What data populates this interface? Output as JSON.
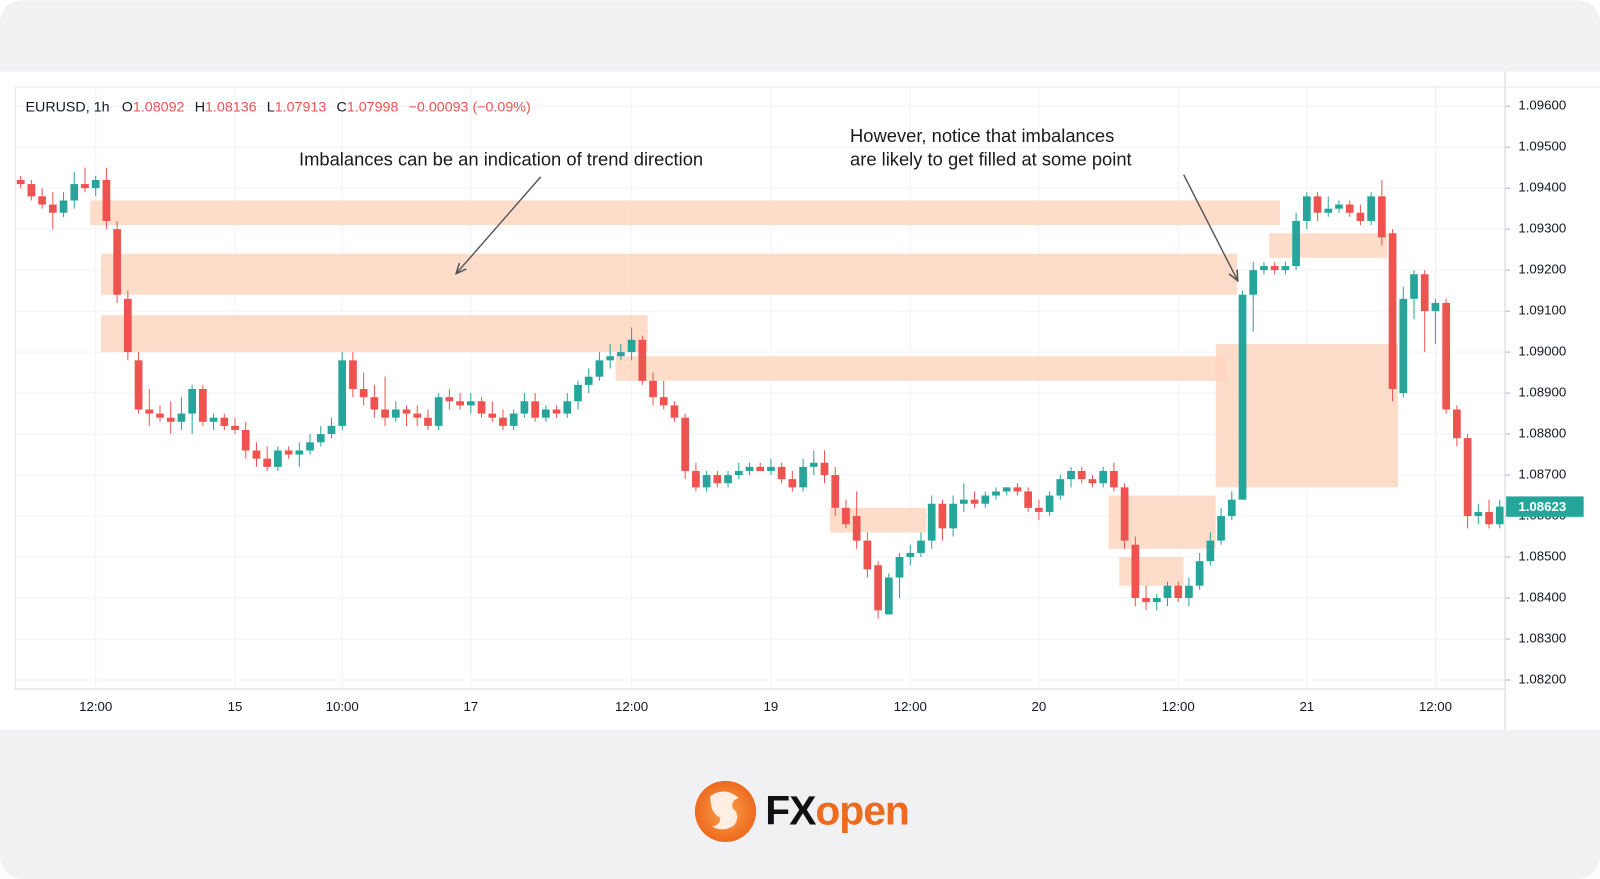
{
  "chart_data": {
    "type": "candlestick",
    "header": {
      "symbol": "EURUSD, 1h",
      "fields": [
        {
          "label": "O",
          "value": "1.08092"
        },
        {
          "label": "H",
          "value": "1.08136"
        },
        {
          "label": "L",
          "value": "1.07913"
        },
        {
          "label": "C",
          "value": "1.07998"
        }
      ],
      "change": "−0.00093 (−0.09%)"
    },
    "annotations": [
      {
        "lines": [
          "Imbalances can be an indication of trend direction"
        ]
      },
      {
        "lines": [
          "However, notice that imbalances",
          "are likely to get filled at some point"
        ]
      }
    ],
    "categories": [
      null,
      null,
      null,
      null,
      null,
      null,
      null,
      "12:00",
      null,
      null,
      null,
      null,
      null,
      null,
      null,
      null,
      null,
      null,
      null,
      null,
      "15",
      null,
      null,
      null,
      null,
      null,
      null,
      null,
      null,
      null,
      "10:00",
      null,
      null,
      null,
      null,
      null,
      null,
      null,
      null,
      null,
      null,
      null,
      "17",
      null,
      null,
      null,
      null,
      null,
      null,
      null,
      null,
      null,
      null,
      null,
      null,
      null,
      null,
      "12:00",
      null,
      null,
      null,
      null,
      null,
      null,
      null,
      null,
      null,
      null,
      null,
      null,
      "19",
      null,
      null,
      null,
      null,
      null,
      null,
      null,
      null,
      null,
      null,
      null,
      null,
      "12:00",
      null,
      null,
      null,
      null,
      null,
      null,
      null,
      null,
      null,
      null,
      null,
      "20",
      null,
      null,
      null,
      null,
      null,
      null,
      null,
      null,
      null,
      null,
      null,
      null,
      "12:00",
      null,
      null,
      null,
      null,
      null,
      null,
      null,
      null,
      null,
      null,
      null,
      "21",
      null,
      null,
      null,
      null,
      null,
      null,
      null,
      null,
      null,
      null,
      null,
      "12:00",
      null,
      null,
      null,
      null,
      null,
      null
    ],
    "open": [
      1.0942,
      1.0941,
      1.0938,
      1.0936,
      1.0934,
      1.0937,
      1.0941,
      1.094,
      1.0942,
      1.093,
      1.0913,
      1.0898,
      1.0886,
      1.0885,
      1.0884,
      1.0883,
      1.0885,
      1.0891,
      1.0883,
      1.0884,
      1.0882,
      1.0881,
      1.0876,
      1.0874,
      1.0872,
      1.0876,
      1.0875,
      1.0876,
      1.0878,
      1.088,
      1.0882,
      1.0898,
      1.0891,
      1.0889,
      1.0886,
      1.0884,
      1.0886,
      1.0885,
      1.0884,
      1.0882,
      1.0889,
      1.0888,
      1.0887,
      1.0888,
      1.0885,
      1.0884,
      1.0882,
      1.0885,
      1.0888,
      1.0884,
      1.0886,
      1.0885,
      1.0888,
      1.0892,
      1.0894,
      1.0898,
      1.0899,
      1.09,
      1.0903,
      1.0893,
      1.0889,
      1.0887,
      1.0884,
      1.0871,
      1.0867,
      1.087,
      1.0868,
      1.087,
      1.0871,
      1.0872,
      1.0871,
      1.0872,
      1.0869,
      1.0867,
      1.0872,
      1.0873,
      1.087,
      1.0862,
      1.086,
      1.0854,
      1.0848,
      1.0836,
      1.0845,
      1.085,
      1.0851,
      1.0854,
      1.0863,
      1.0857,
      1.0863,
      1.0864,
      1.0863,
      1.0865,
      1.0866,
      1.0867,
      1.0866,
      1.0862,
      1.0861,
      1.0865,
      1.0869,
      1.0871,
      1.0869,
      1.0868,
      1.0871,
      1.0867,
      1.0853,
      1.084,
      1.0839,
      1.084,
      1.0843,
      1.084,
      1.0843,
      1.0849,
      1.0854,
      1.086,
      1.0864,
      1.0914,
      1.092,
      1.0921,
      1.092,
      1.0921,
      1.0932,
      1.0938,
      1.0934,
      1.0935,
      1.0936,
      1.0934,
      1.0932,
      1.0938,
      1.0929,
      1.089,
      1.0913,
      1.0919,
      1.091,
      1.0912,
      1.0886,
      1.0879,
      1.086,
      1.0861,
      1.0858
    ],
    "high": [
      1.0943,
      1.0942,
      1.094,
      1.0939,
      1.0939,
      1.0944,
      1.0945,
      1.0943,
      1.0945,
      1.0932,
      1.0915,
      1.09,
      1.0891,
      1.0887,
      1.0888,
      1.0889,
      1.0892,
      1.0892,
      1.0885,
      1.0885,
      1.0884,
      1.0883,
      1.0878,
      1.0877,
      1.0877,
      1.0877,
      1.0878,
      1.088,
      1.0882,
      1.0884,
      1.09,
      1.09,
      1.0895,
      1.0892,
      1.0894,
      1.0888,
      1.0887,
      1.0887,
      1.0886,
      1.089,
      1.0891,
      1.089,
      1.089,
      1.0889,
      1.0888,
      1.0886,
      1.0886,
      1.089,
      1.089,
      1.0887,
      1.0887,
      1.089,
      1.0893,
      1.0896,
      1.09,
      1.0902,
      1.0902,
      1.0906,
      1.0904,
      1.0895,
      1.0893,
      1.0888,
      1.0885,
      1.0873,
      1.0871,
      1.0871,
      1.0871,
      1.0873,
      1.0873,
      1.0873,
      1.0874,
      1.0873,
      1.0871,
      1.0874,
      1.0876,
      1.0876,
      1.0872,
      1.0864,
      1.0866,
      1.0856,
      1.0849,
      1.0846,
      1.0851,
      1.0853,
      1.0856,
      1.0865,
      1.0864,
      1.0865,
      1.0868,
      1.0866,
      1.0866,
      1.0867,
      1.0867,
      1.0868,
      1.0867,
      1.0864,
      1.0866,
      1.087,
      1.0872,
      1.0872,
      1.087,
      1.0872,
      1.0873,
      1.0868,
      1.0855,
      1.0843,
      1.0841,
      1.0844,
      1.0844,
      1.0845,
      1.0851,
      1.0856,
      1.0862,
      1.0866,
      1.0915,
      1.0922,
      1.0922,
      1.0922,
      1.0922,
      1.0934,
      1.0939,
      1.0939,
      1.0938,
      1.0937,
      1.0937,
      1.0936,
      1.0939,
      1.0942,
      1.093,
      1.0916,
      1.092,
      1.092,
      1.0913,
      1.0913,
      1.0887,
      1.088,
      1.0863,
      1.0864,
      1.0864
    ],
    "low": [
      1.094,
      1.0937,
      1.0935,
      1.093,
      1.0933,
      1.0935,
      1.0939,
      1.0938,
      1.093,
      1.0912,
      1.0898,
      1.0885,
      1.0882,
      1.0883,
      1.088,
      1.0881,
      1.088,
      1.0882,
      1.0881,
      1.0881,
      1.088,
      1.0874,
      1.0872,
      1.0871,
      1.0871,
      1.0874,
      1.0872,
      1.0875,
      1.0877,
      1.0879,
      1.0881,
      1.0889,
      1.0887,
      1.0884,
      1.0882,
      1.0883,
      1.0882,
      1.0882,
      1.0881,
      1.0881,
      1.0886,
      1.0886,
      1.0885,
      1.0884,
      1.0883,
      1.0881,
      1.0881,
      1.0884,
      1.0883,
      1.0883,
      1.0884,
      1.0884,
      1.0886,
      1.089,
      1.0893,
      1.0896,
      1.0898,
      1.0898,
      1.0892,
      1.0887,
      1.0886,
      1.0883,
      1.0869,
      1.0866,
      1.0866,
      1.0867,
      1.0867,
      1.0869,
      1.087,
      1.0871,
      1.087,
      1.0868,
      1.0866,
      1.0866,
      1.087,
      1.0868,
      1.086,
      1.0857,
      1.0852,
      1.0845,
      1.0835,
      1.0836,
      1.084,
      1.0848,
      1.085,
      1.0852,
      1.0854,
      1.0855,
      1.0861,
      1.0862,
      1.0862,
      1.0864,
      1.0865,
      1.0865,
      1.0861,
      1.0859,
      1.086,
      1.0864,
      1.0867,
      1.0868,
      1.0867,
      1.0867,
      1.0866,
      1.0852,
      1.0838,
      1.0837,
      1.0837,
      1.0838,
      1.0839,
      1.0838,
      1.0842,
      1.0848,
      1.0853,
      1.0859,
      1.0864,
      1.0905,
      1.0919,
      1.0919,
      1.0919,
      1.092,
      1.093,
      1.0932,
      1.0933,
      1.0934,
      1.0933,
      1.0931,
      1.0931,
      1.0926,
      1.0888,
      1.0889,
      1.0908,
      1.09,
      1.0902,
      1.0885,
      1.0877,
      1.0857,
      1.0858,
      1.0857,
      1.0857
    ],
    "close": [
      1.0941,
      1.0938,
      1.0936,
      1.0934,
      1.0937,
      1.0941,
      1.094,
      1.0942,
      1.0932,
      1.0914,
      1.09,
      1.0886,
      1.0885,
      1.0884,
      1.0883,
      1.0885,
      1.0891,
      1.0883,
      1.0884,
      1.0882,
      1.0881,
      1.0876,
      1.0874,
      1.0872,
      1.0876,
      1.0875,
      1.0876,
      1.0878,
      1.088,
      1.0882,
      1.0898,
      1.0891,
      1.0889,
      1.0886,
      1.0884,
      1.0886,
      1.0885,
      1.0884,
      1.0882,
      1.0889,
      1.0888,
      1.0887,
      1.0888,
      1.0885,
      1.0884,
      1.0882,
      1.0885,
      1.0888,
      1.0884,
      1.0886,
      1.0885,
      1.0888,
      1.0892,
      1.0894,
      1.0898,
      1.0899,
      1.09,
      1.0903,
      1.0893,
      1.0889,
      1.0887,
      1.0884,
      1.0871,
      1.0867,
      1.087,
      1.0868,
      1.087,
      1.0871,
      1.0872,
      1.0871,
      1.0872,
      1.0869,
      1.0867,
      1.0872,
      1.0873,
      1.087,
      1.0862,
      1.0858,
      1.0854,
      1.0847,
      1.0837,
      1.0845,
      1.085,
      1.0851,
      1.0854,
      1.0863,
      1.0857,
      1.0863,
      1.0864,
      1.0863,
      1.0865,
      1.0866,
      1.0867,
      1.0866,
      1.0862,
      1.0861,
      1.0865,
      1.0869,
      1.0871,
      1.0869,
      1.0868,
      1.0871,
      1.0867,
      1.0854,
      1.084,
      1.0839,
      1.084,
      1.0843,
      1.084,
      1.0843,
      1.0849,
      1.0854,
      1.086,
      1.0864,
      1.0914,
      1.092,
      1.0921,
      1.092,
      1.0921,
      1.0932,
      1.0938,
      1.0934,
      1.0935,
      1.0936,
      1.0934,
      1.0932,
      1.0938,
      1.0928,
      1.0891,
      1.0913,
      1.0919,
      1.091,
      1.0912,
      1.0886,
      1.0879,
      1.086,
      1.0861,
      1.0858,
      1.08623
    ],
    "zones": [
      {
        "start": 7,
        "end": 117,
        "low": 1.0931,
        "high": 1.0937
      },
      {
        "start": 8,
        "end": 113,
        "low": 1.0914,
        "high": 1.0924
      },
      {
        "start": 8,
        "end": 58,
        "low": 1.09,
        "high": 1.0909
      },
      {
        "start": 56,
        "end": 112,
        "low": 1.0893,
        "high": 1.0899
      },
      {
        "start": 112,
        "end": 128,
        "low": 1.0867,
        "high": 1.0902
      },
      {
        "start": 117,
        "end": 127,
        "low": 1.0923,
        "high": 1.0929
      },
      {
        "start": 76,
        "end": 84,
        "low": 1.0856,
        "high": 1.0862
      },
      {
        "start": 102,
        "end": 111,
        "low": 1.0852,
        "high": 1.0865
      },
      {
        "start": 103,
        "end": 108,
        "low": 1.0843,
        "high": 1.085
      }
    ],
    "ylim": [
      1.08178,
      1.09647
    ],
    "yticks": [
      {
        "value": 1.096,
        "label": "1.09600"
      },
      {
        "value": 1.095,
        "label": "1.09500"
      },
      {
        "value": 1.094,
        "label": "1.09400"
      },
      {
        "value": 1.093,
        "label": "1.09300"
      },
      {
        "value": 1.092,
        "label": "1.09200"
      },
      {
        "value": 1.091,
        "label": "1.09100"
      },
      {
        "value": 1.09,
        "label": "1.09000"
      },
      {
        "value": 1.089,
        "label": "1.08900"
      },
      {
        "value": 1.088,
        "label": "1.08800"
      },
      {
        "value": 1.087,
        "label": "1.08700"
      },
      {
        "value": 1.086,
        "label": "1.08600"
      },
      {
        "value": 1.085,
        "label": "1.08500"
      },
      {
        "value": 1.084,
        "label": "1.08400"
      },
      {
        "value": 1.083,
        "label": "1.08300"
      },
      {
        "value": 1.082,
        "label": "1.08200"
      }
    ],
    "grid": true,
    "colors": {
      "up": "#26a69a",
      "down": "#ef5350",
      "zone": "#fcd3bd",
      "header_value": "#ef5350"
    }
  },
  "brand": {
    "first": "FX",
    "second": "open"
  }
}
